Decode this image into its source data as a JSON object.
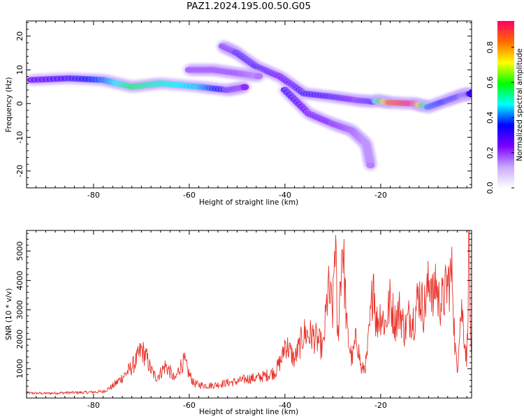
{
  "title": "PAZ1.2024.195.00.50.G05",
  "chart_data": [
    {
      "type": "heatmap",
      "xlabel": "Height of straight line (km)",
      "ylabel": "Frequency (Hz)",
      "xlim": [
        -94,
        -1
      ],
      "ylim": [
        -25,
        24.5
      ],
      "xticks": [
        -80,
        -60,
        -40,
        -20
      ],
      "yticks": [
        20,
        10,
        0,
        -10,
        -20
      ],
      "colorbar": {
        "label": "Normalized spectral amplitude",
        "range": [
          0.0,
          0.95
        ],
        "ticks": [
          0.0,
          0.2,
          0.4,
          0.6,
          0.8
        ],
        "tick_labels": [
          "0.0",
          "0.2",
          "0.4",
          "0.6",
          "0.8"
        ],
        "colors": [
          "#ffffff",
          "#c9a8ff",
          "#7b00ff",
          "#0000ff",
          "#00ffff",
          "#00ff00",
          "#ffff00",
          "#ff6a00",
          "#ff0066"
        ]
      },
      "ridges": [
        {
          "points": [
            [
              -93,
              7
            ],
            [
              -85,
              7.5
            ],
            [
              -78,
              7
            ],
            [
              -72,
              5
            ],
            [
              -66,
              6
            ],
            [
              -58,
              5
            ],
            [
              -52,
              4
            ],
            [
              -48,
              5
            ]
          ],
          "amplitudes": [
            0.25,
            0.3,
            0.4,
            0.55,
            0.5,
            0.45,
            0.3,
            0.2
          ]
        },
        {
          "points": [
            [
              -53,
              17
            ],
            [
              -50,
              15
            ],
            [
              -46,
              11
            ],
            [
              -41,
              8
            ],
            [
              -36,
              3
            ],
            [
              -30,
              2
            ],
            [
              -25,
              1
            ],
            [
              -21,
              0.5
            ]
          ],
          "amplitudes": [
            0.25,
            0.3,
            0.3,
            0.25,
            0.3,
            0.3,
            0.25,
            0.35
          ]
        },
        {
          "points": [
            [
              -21,
              1
            ],
            [
              -18,
              0.3
            ],
            [
              -13,
              0
            ],
            [
              -10,
              -1
            ],
            [
              -6,
              1
            ],
            [
              -3,
              2.5
            ],
            [
              -1,
              3
            ]
          ],
          "amplitudes": [
            0.45,
            0.85,
            0.95,
            0.4,
            0.35,
            0.35,
            0.3
          ]
        },
        {
          "points": [
            [
              -40,
              4
            ],
            [
              -35,
              -3
            ],
            [
              -30,
              -6
            ],
            [
              -26,
              -8
            ],
            [
              -23,
              -12
            ],
            [
              -22,
              -19
            ]
          ],
          "amplitudes": [
            0.3,
            0.25,
            0.25,
            0.2,
            0.15,
            0.15
          ]
        },
        {
          "points": [
            [
              -60,
              10
            ],
            [
              -55,
              10
            ],
            [
              -50,
              9
            ],
            [
              -45,
              8
            ]
          ],
          "amplitudes": [
            0.2,
            0.2,
            0.2,
            0.15
          ]
        }
      ]
    },
    {
      "type": "line",
      "xlabel": "Height of straight line (km)",
      "ylabel": "SNR (10 * v/v)",
      "xlim": [
        -94,
        -1
      ],
      "ylim": [
        0,
        5700
      ],
      "xticks": [
        -80,
        -60,
        -40,
        -20
      ],
      "yticks": [
        1000,
        2000,
        3000,
        4000,
        5000
      ],
      "color": "#e8332b",
      "series": [
        {
          "x": [
            -94,
            -90,
            -86,
            -82,
            -78,
            -76,
            -74,
            -72,
            -71,
            -70,
            -69,
            -68,
            -67,
            -66,
            -65,
            -64,
            -63,
            -62,
            -61,
            -60,
            -59,
            -58,
            -56,
            -54,
            -52,
            -50,
            -48,
            -46,
            -44,
            -42,
            -40.5,
            -40,
            -38,
            -36,
            -34,
            -32,
            -31,
            -30,
            -29.5,
            -29,
            -28.5,
            -28,
            -27,
            -26,
            -25,
            -24,
            -23,
            -22,
            -21.5,
            -21,
            -20,
            -19,
            -18,
            -17,
            -16,
            -15,
            -14,
            -13,
            -12,
            -11,
            -10,
            -9.5,
            -9,
            -8.5,
            -8,
            -7,
            -6,
            -5,
            -4.5,
            -4,
            -3.5,
            -3,
            -2,
            -1.5,
            -1.2,
            -1
          ],
          "y": [
            170,
            160,
            180,
            190,
            220,
            400,
            700,
            1050,
            1300,
            1650,
            1400,
            950,
            700,
            850,
            1100,
            900,
            600,
            1050,
            1250,
            800,
            500,
            450,
            420,
            460,
            520,
            560,
            650,
            680,
            760,
            900,
            1400,
            1900,
            1300,
            2200,
            2100,
            1700,
            3700,
            2900,
            5700,
            1800,
            3700,
            5500,
            2200,
            1300,
            2100,
            900,
            1200,
            2900,
            4400,
            2500,
            2900,
            2500,
            3300,
            2600,
            3000,
            2300,
            2800,
            2700,
            3600,
            3000,
            3800,
            4200,
            3100,
            4100,
            3300,
            3300,
            3900,
            4200,
            1800,
            900,
            2600,
            3000,
            1200,
            5700,
            1800,
            1100
          ]
        }
      ]
    }
  ]
}
